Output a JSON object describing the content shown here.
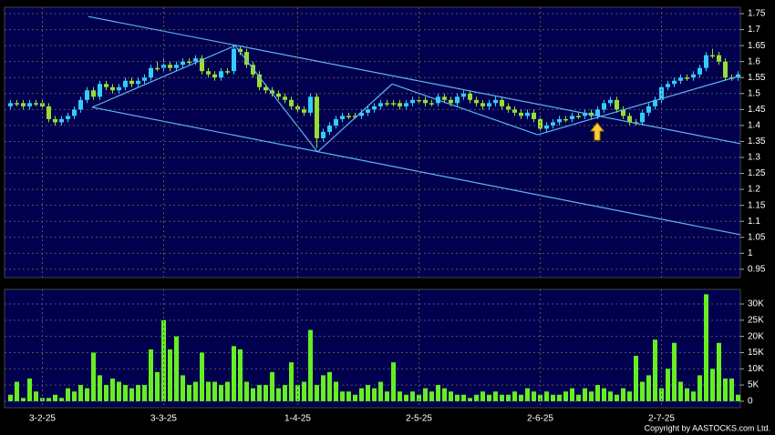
{
  "chart_data": [
    {
      "type": "candlestick",
      "up_color": "#33ccff",
      "down_color": "#99dd33",
      "line_color": "#5fb4f0",
      "ylim": [
        0.924,
        1.77
      ],
      "yticks": [
        0.95,
        1,
        1.05,
        1.1,
        1.15,
        1.2,
        1.25,
        1.3,
        1.35,
        1.4,
        1.45,
        1.5,
        1.55,
        1.6,
        1.65,
        1.7,
        1.75
      ],
      "grid": true,
      "open": [
        1.46,
        1.47,
        1.47,
        1.46,
        1.47,
        1.47,
        1.46,
        1.42,
        1.41,
        1.42,
        1.43,
        1.45,
        1.48,
        1.51,
        1.49,
        1.53,
        1.52,
        1.51,
        1.52,
        1.54,
        1.53,
        1.54,
        1.55,
        1.58,
        1.58,
        1.59,
        1.58,
        1.59,
        1.6,
        1.6,
        1.61,
        1.57,
        1.56,
        1.55,
        1.57,
        1.57,
        1.64,
        1.63,
        1.59,
        1.56,
        1.52,
        1.51,
        1.5,
        1.49,
        1.48,
        1.46,
        1.45,
        1.44,
        1.49,
        1.36,
        1.38,
        1.4,
        1.42,
        1.43,
        1.43,
        1.43,
        1.44,
        1.45,
        1.46,
        1.47,
        1.47,
        1.47,
        1.46,
        1.47,
        1.48,
        1.48,
        1.47,
        1.47,
        1.49,
        1.48,
        1.47,
        1.49,
        1.5,
        1.48,
        1.47,
        1.46,
        1.47,
        1.48,
        1.46,
        1.45,
        1.44,
        1.43,
        1.44,
        1.42,
        1.39,
        1.4,
        1.41,
        1.42,
        1.42,
        1.43,
        1.43,
        1.44,
        1.43,
        1.45,
        1.47,
        1.48,
        1.45,
        1.43,
        1.41,
        1.41,
        1.44,
        1.46,
        1.48,
        1.52,
        1.53,
        1.54,
        1.55,
        1.55,
        1.56,
        1.58,
        1.62,
        1.62,
        1.6,
        1.55,
        1.55
      ],
      "high": [
        1.48,
        1.48,
        1.48,
        1.48,
        1.48,
        1.48,
        1.47,
        1.43,
        1.43,
        1.44,
        1.46,
        1.49,
        1.52,
        1.52,
        1.54,
        1.54,
        1.53,
        1.53,
        1.55,
        1.55,
        1.55,
        1.56,
        1.59,
        1.6,
        1.61,
        1.6,
        1.6,
        1.61,
        1.61,
        1.62,
        1.62,
        1.58,
        1.57,
        1.58,
        1.58,
        1.65,
        1.65,
        1.64,
        1.6,
        1.57,
        1.53,
        1.52,
        1.51,
        1.5,
        1.49,
        1.47,
        1.46,
        1.5,
        1.5,
        1.39,
        1.41,
        1.43,
        1.44,
        1.44,
        1.44,
        1.45,
        1.46,
        1.47,
        1.48,
        1.48,
        1.48,
        1.48,
        1.48,
        1.49,
        1.49,
        1.49,
        1.48,
        1.5,
        1.5,
        1.49,
        1.5,
        1.51,
        1.51,
        1.49,
        1.48,
        1.48,
        1.49,
        1.49,
        1.47,
        1.46,
        1.45,
        1.45,
        1.45,
        1.43,
        1.41,
        1.42,
        1.43,
        1.43,
        1.44,
        1.44,
        1.45,
        1.45,
        1.46,
        1.48,
        1.49,
        1.49,
        1.46,
        1.44,
        1.42,
        1.45,
        1.47,
        1.49,
        1.53,
        1.54,
        1.55,
        1.56,
        1.56,
        1.57,
        1.59,
        1.63,
        1.64,
        1.63,
        1.61,
        1.56,
        1.57
      ],
      "low": [
        1.45,
        1.46,
        1.45,
        1.45,
        1.46,
        1.45,
        1.41,
        1.4,
        1.4,
        1.41,
        1.42,
        1.44,
        1.47,
        1.48,
        1.48,
        1.51,
        1.5,
        1.5,
        1.51,
        1.52,
        1.52,
        1.53,
        1.54,
        1.57,
        1.57,
        1.57,
        1.57,
        1.58,
        1.59,
        1.59,
        1.56,
        1.55,
        1.54,
        1.54,
        1.56,
        1.56,
        1.62,
        1.58,
        1.55,
        1.51,
        1.5,
        1.49,
        1.48,
        1.47,
        1.45,
        1.44,
        1.43,
        1.43,
        1.33,
        1.35,
        1.37,
        1.39,
        1.41,
        1.42,
        1.42,
        1.42,
        1.43,
        1.44,
        1.45,
        1.46,
        1.46,
        1.45,
        1.45,
        1.46,
        1.47,
        1.46,
        1.46,
        1.46,
        1.47,
        1.46,
        1.46,
        1.48,
        1.47,
        1.46,
        1.45,
        1.45,
        1.46,
        1.45,
        1.44,
        1.43,
        1.42,
        1.42,
        1.41,
        1.38,
        1.38,
        1.39,
        1.4,
        1.41,
        1.41,
        1.42,
        1.42,
        1.42,
        1.42,
        1.44,
        1.46,
        1.44,
        1.42,
        1.4,
        1.4,
        1.4,
        1.43,
        1.45,
        1.47,
        1.51,
        1.52,
        1.53,
        1.54,
        1.54,
        1.55,
        1.57,
        1.61,
        1.59,
        1.54,
        1.54,
        1.54
      ],
      "close": [
        1.47,
        1.47,
        1.46,
        1.47,
        1.47,
        1.46,
        1.42,
        1.41,
        1.42,
        1.43,
        1.45,
        1.48,
        1.51,
        1.49,
        1.53,
        1.52,
        1.51,
        1.52,
        1.54,
        1.53,
        1.54,
        1.55,
        1.58,
        1.58,
        1.59,
        1.58,
        1.59,
        1.6,
        1.6,
        1.61,
        1.57,
        1.56,
        1.55,
        1.57,
        1.57,
        1.64,
        1.63,
        1.59,
        1.56,
        1.52,
        1.51,
        1.5,
        1.49,
        1.48,
        1.46,
        1.45,
        1.44,
        1.49,
        1.36,
        1.38,
        1.4,
        1.42,
        1.43,
        1.43,
        1.43,
        1.44,
        1.45,
        1.46,
        1.47,
        1.47,
        1.47,
        1.46,
        1.47,
        1.48,
        1.48,
        1.47,
        1.47,
        1.49,
        1.48,
        1.47,
        1.49,
        1.5,
        1.48,
        1.47,
        1.46,
        1.47,
        1.48,
        1.46,
        1.45,
        1.44,
        1.43,
        1.44,
        1.42,
        1.39,
        1.4,
        1.41,
        1.42,
        1.42,
        1.43,
        1.43,
        1.44,
        1.43,
        1.45,
        1.47,
        1.48,
        1.45,
        1.43,
        1.41,
        1.41,
        1.44,
        1.46,
        1.48,
        1.52,
        1.53,
        1.54,
        1.55,
        1.55,
        1.56,
        1.58,
        1.62,
        1.62,
        1.6,
        1.55,
        1.55,
        1.56
      ],
      "lines": [
        [
          12.2,
          1.741,
          114.4,
          1.343
        ],
        [
          12.8,
          1.457,
          114.4,
          1.058
        ],
        [
          12.8,
          1.457,
          35.2,
          1.65
        ],
        [
          35.2,
          1.65,
          48.1,
          1.317
        ],
        [
          48.1,
          1.317,
          59.8,
          1.53
        ],
        [
          59.8,
          1.53,
          82.6,
          1.371
        ],
        [
          82.6,
          1.371,
          114.4,
          1.556
        ]
      ]
    },
    {
      "type": "bar",
      "color": "#66ee22",
      "ylim": [
        -2000,
        34500
      ],
      "yticks": [
        0,
        {
          "value": 5000,
          "label": "5K"
        },
        {
          "value": 10000,
          "label": "10K"
        },
        {
          "value": 15000,
          "label": "15K"
        },
        {
          "value": 20000,
          "label": "20K"
        },
        {
          "value": 25000,
          "label": "25K"
        },
        {
          "value": 30000,
          "label": "30K"
        }
      ],
      "values": [
        2000,
        6000,
        1000,
        7000,
        3000,
        1000,
        1000,
        2000,
        1000,
        4000,
        3000,
        5000,
        4000,
        15000,
        8000,
        5000,
        7000,
        6000,
        5000,
        4000,
        5000,
        5000,
        16000,
        9000,
        25000,
        16000,
        20000,
        8000,
        5000,
        6000,
        15000,
        6000,
        6000,
        5000,
        6000,
        17000,
        16000,
        6000,
        4000,
        5000,
        5000,
        9000,
        4000,
        5000,
        12000,
        5000,
        6000,
        22000,
        5000,
        8000,
        9000,
        6000,
        3000,
        3000,
        2000,
        4000,
        5000,
        4000,
        6000,
        3000,
        12000,
        3000,
        2000,
        3000,
        2000,
        4000,
        3000,
        5000,
        4000,
        3000,
        2000,
        2000,
        1000,
        2000,
        3000,
        2000,
        3000,
        2000,
        2000,
        3000,
        2000,
        4000,
        3000,
        2000,
        3000,
        2000,
        2000,
        3000,
        4000,
        2000,
        4000,
        3000,
        5000,
        4000,
        3000,
        2000,
        4000,
        3000,
        14000,
        6000,
        8000,
        19000,
        4000,
        10000,
        18000,
        6000,
        4000,
        3000,
        8000,
        33000,
        10000,
        18000,
        7000,
        7000,
        2000
      ],
      "xticks": [
        {
          "value": 5,
          "label": "3-2-25"
        },
        {
          "value": 24,
          "label": "3-3-25"
        },
        {
          "value": 45,
          "label": "1-4-25"
        },
        {
          "value": 64,
          "label": "2-5-25"
        },
        {
          "value": 83,
          "label": "2-6-25"
        },
        {
          "value": 102,
          "label": "2-7-25"
        }
      ]
    }
  ],
  "footer": "Copyright by AASTOCKS.com Ltd."
}
